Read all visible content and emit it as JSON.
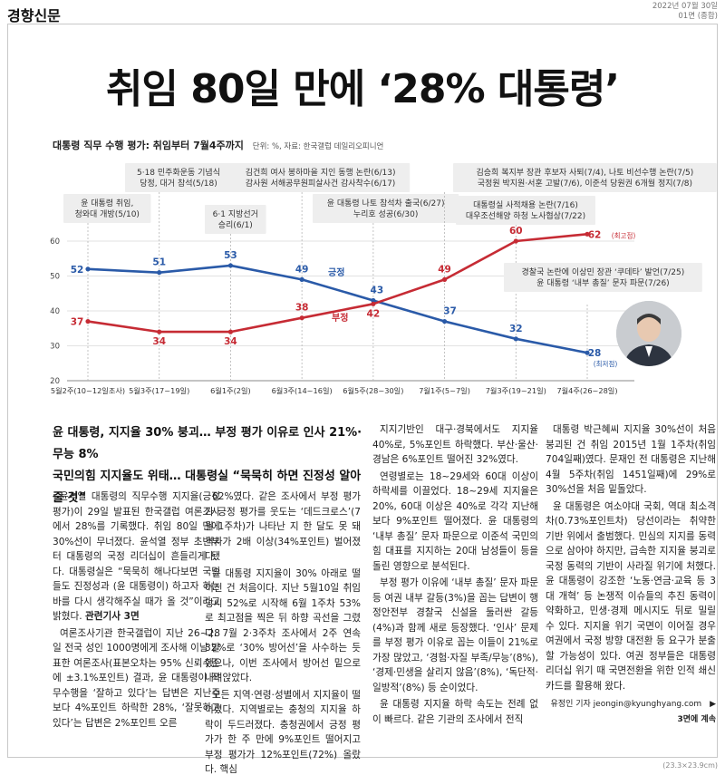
{
  "masthead": "경향신문",
  "dateline": {
    "date": "2022년 07월 30일",
    "page": "01면 (종합)"
  },
  "headline": "취임 80일 만에 ‘28% 대통령’",
  "chart_data": {
    "type": "line",
    "title": "대통령 직무 수행 평가: 취임부터 7월4주까지",
    "unit_note": "단위: %, 자료: 한국갤럽 데일리오피니언",
    "categories": [
      "5월2주(10~12일조사)",
      "5월3주(17~19일)",
      "6월1주(2일)",
      "6월3주(14~16일)",
      "6월5주(28~30일)",
      "7월1주(5~7일)",
      "7월3주(19~21일)",
      "7월4주(26~28일)"
    ],
    "x": [
      0,
      1,
      2,
      3,
      4,
      5,
      6,
      7
    ],
    "ylim": [
      20,
      60
    ],
    "yticks": [
      20,
      30,
      40,
      50,
      60
    ],
    "series": [
      {
        "name": "긍정",
        "color": "#2a5aa8",
        "points": [
          [
            0,
            52
          ],
          [
            1,
            51
          ],
          [
            2,
            53
          ],
          [
            3,
            49
          ],
          [
            4,
            43
          ],
          [
            5,
            37
          ],
          [
            6,
            32
          ],
          [
            7,
            28
          ]
        ],
        "labels": [
          "52",
          "51",
          "53",
          "49",
          "43",
          "37",
          "32",
          "28"
        ]
      },
      {
        "name": "부정",
        "color": "#c62b34",
        "points": [
          [
            0,
            37
          ],
          [
            1,
            34
          ],
          [
            2,
            34
          ],
          [
            3,
            38
          ],
          [
            4,
            42
          ],
          [
            5,
            49
          ],
          [
            6,
            60
          ],
          [
            7,
            62
          ]
        ],
        "labels": [
          "37",
          "34",
          "34",
          "38",
          "42",
          "49",
          "60",
          "62"
        ]
      }
    ],
    "extreme_labels": {
      "max": "(최고점)",
      "min": "(최저점)"
    },
    "annotations": [
      {
        "x": 0,
        "text": [
          "윤 대통령 취임,",
          "청와대 개방(5/10)"
        ]
      },
      {
        "x": 1,
        "text": [
          "5·18 민주화운동 기념식",
          "당정, 대거 참석(5/18)"
        ]
      },
      {
        "x": 2,
        "text": [
          "6·1 지방선거",
          "승리(6/1)"
        ]
      },
      {
        "x": 3,
        "text": [
          "김건희 여사 봉하마을 지인 동행 논란(6/13)",
          "감사원 서해공무원피살사건 감사착수(6/17)"
        ]
      },
      {
        "x": 4,
        "text": [
          "윤 대통령 나토 참석차 출국(6/27)",
          "누리호 성공(6/30)"
        ]
      },
      {
        "x": 5,
        "text": [
          "김승희 복지부 장관 후보자 사퇴(7/4), 나토 비선수행 논란(7/5)",
          "국정원 박지원·서훈 고발(7/6), 이준석 당원권 6개월 정지(7/8)"
        ]
      },
      {
        "x": 6,
        "text": [
          "대통령실 사적채용 논란(7/16)",
          "대우조선해양 하청 노사협상(7/22)"
        ]
      },
      {
        "x": 7,
        "text": [
          "경찰국 논란에 이상민 장관 ‘쿠데타’ 발언(7/25)",
          "윤 대통령 ‘내부 총질’ 문자 파문(7/26)"
        ]
      }
    ]
  },
  "lede": [
    "윤 대통령, 지지율 30% 붕괴… 부정 평가 이유로 인사 21%·무능 8%",
    "국민의힘 지지율도 위태… 대통령실 “묵묵히 하면 진정성 알아줄 것”"
  ],
  "article": {
    "col1": [
      "윤석열 대통령의 직무수행 지지율(긍정 평가)이 29일 발표된 한국갤럽 여론조사에서 28%를 기록했다. 취임 80일 만에 30%선이 무너졌다. 윤석열 정부 초반부터 대통령의 국정 리더십이 흔들리게 됐다. 대통령실은 “묵묵히 해나다보면 국민들도 진정성과 (윤 대통령이) 하고자 하는 바를 다시 생각해주실 때가 올 것”이라고 밝혔다. ",
      "여론조사기관 한국갤럽이 지난 26~28일 전국 성인 1000명에게 조사해 이날 발표한 여론조사(표본오차는 95% 신뢰수준에 ±3.1%포인트) 결과, 윤 대통령이 직무수행을 ‘잘하고 있다’는 답변은 지난주보다 4%포인트 하락한 28%, ‘잘못하고 있다’는 답변은 2%포인트 오른"
    ],
    "related": "관련기사 3면",
    "col2": [
      "62%였다. 같은 조사에서 부정 평가가 긍정 평가를 웃도는 ‘데드크로스’(7월 1주차)가 나타난 지 한 달도 못 돼 격차가 2배 이상(34%포인트) 벌어졌다.",
      "윤 대통령 지지율이 30% 아래로 떨어진 건 처음이다. 지난 5월10일 취임 당시 52%로 시작해 6월 1주차 53%로 최고점을 찍은 뒤 하향 곡선을 그렸다. 7월 2·3주차 조사에서 2주 연속 32%로 ‘30% 방어선’을 사수하는 듯했으나, 이번 조사에서 방어선 밑으로 내려앉았다.",
      "모든 지역·연령·성별에서 지지율이 떨어졌다. 지역별로는 충청의 지지율 하락이 두드러졌다. 충청권에서 긍정 평가가 한 주 만에 9%포인트 떨어지고 부정 평가가 12%포인트(72%) 올랐다. 핵심"
    ],
    "col3": [
      "지지기반인 대구·경북에서도 지지율 40%로, 5%포인트 하락했다. 부산·울산·경남은 6%포인트 떨어진 32%였다.",
      "연령별로는 18~29세와 60대 이상이 하락세를 이끌었다. 18~29세 지지율은 20%, 60대 이상은 40%로 각각 지난해보다 9%포인트 떨어졌다. 윤 대통령의 ‘내부 총질’ 문자 파문으로 이준석 국민의힘 대표를 지지하는 20대 남성들이 등을 돌린 영향으로 분석된다.",
      "부정 평가 이유에 ‘내부 총질’ 문자 파문 등 여권 내부 갈등(3%)을 꼽는 답변이 행정안전부 경찰국 신설을 둘러싼 갈등(4%)과 함께 새로 등장했다. ‘인사’ 문제를 부정 평가 이유로 꼽는 이들이 21%로 가장 많았고, ‘경험·자질 부족/무능’(8%), ‘경제·민생을 살리지 않음’(8%), ‘독단적·일방적’(8%) 등 순이었다.",
      "윤 대통령 지지율 하락 속도는 전례 없이 빠르다. 같은 기관의 조사에서 전직"
    ],
    "col4": [
      "대통령 박근혜씨 지지율 30%선이 처음 붕괴된 건 취임 2015년 1월 1주차(취임 704일째)였다. 문재인 전 대통령은 지난해 4월 5주차(취임 1451일째)에 29%로 30%선을 처음 밑돌았다.",
      "윤 대통령은 여소야대 국회, 역대 최소격차(0.73%포인트차) 당선이라는 취약한 기반 위에서 출범했다. 민심의 지지를 동력으로 삼아야 하지만, 급속한 지지율 붕괴로 국정 동력의 기반이 사라질 위기에 처했다. 윤 대통령이 강조한 ‘노동·연금·교육 등 3대 개혁’ 등 논쟁적 이슈들의 추진 동력이 약화하고, 민생·경제 메시지도 뒤로 밀릴 수 있다. 지지율 위기 국면이 이어질 경우 여권에서 국정 방향 대전환 등 요구가 분출할 가능성이 있다. 여권 정부들은 대통령 리더십 위기 때 국면전환을 위한 인적 쇄신 카드를 활용해 왔다."
    ],
    "byline": "유정인 기자 jeongin@kyunghyang.com",
    "continue": "▶ 3면에 계속"
  },
  "size_note": "(23.3×23.9cm)"
}
